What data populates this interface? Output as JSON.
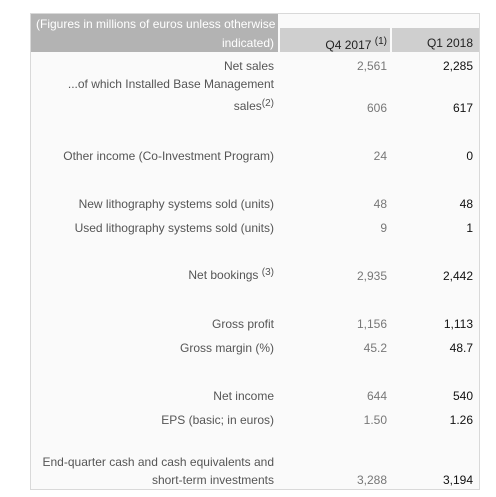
{
  "header": {
    "note_line1": "(Figures in millions of euros unless otherwise",
    "note_line2": "indicated)",
    "col1": "Q4 2017",
    "col1_sup": "(1)",
    "col2": "Q1 2018"
  },
  "rows": [
    {
      "label": "Net sales",
      "q4_2017": "2,561",
      "q1_2018": "2,285"
    },
    {
      "label_line1": "...of which Installed Base Management",
      "label_line2": "sales",
      "label_sup": "(2)",
      "q4_2017": "606",
      "q1_2018": "617"
    },
    {
      "label": "Other income (Co-Investment Program)",
      "q4_2017": "24",
      "q1_2018": "0"
    },
    {
      "label": "New lithography systems sold (units)",
      "q4_2017": "48",
      "q1_2018": "48"
    },
    {
      "label": "Used lithography systems sold (units)",
      "q4_2017": "9",
      "q1_2018": "1"
    },
    {
      "label": "Net bookings",
      "label_sup": "(3)",
      "q4_2017": "2,935",
      "q1_2018": "2,442"
    },
    {
      "label": "Gross profit",
      "q4_2017": "1,156",
      "q1_2018": "1,113"
    },
    {
      "label": "Gross margin (%)",
      "q4_2017": "45.2",
      "q1_2018": "48.7"
    },
    {
      "label": "Net income",
      "q4_2017": "644",
      "q1_2018": "540"
    },
    {
      "label": "EPS (basic; in euros)",
      "q4_2017": "1.50",
      "q1_2018": "1.26"
    },
    {
      "label_line1": "End-quarter cash and cash equivalents and",
      "label_line2": "short-term investments",
      "q4_2017": "3,288",
      "q1_2018": "3,194"
    }
  ]
}
